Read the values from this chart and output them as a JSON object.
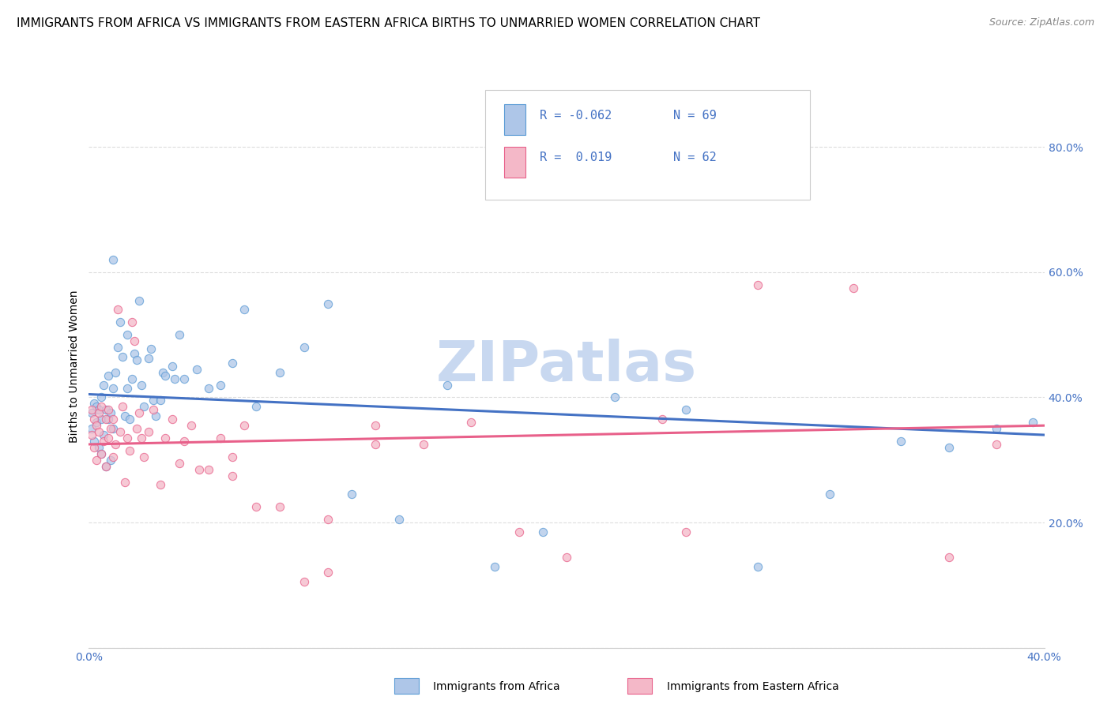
{
  "title": "IMMIGRANTS FROM AFRICA VS IMMIGRANTS FROM EASTERN AFRICA BIRTHS TO UNMARRIED WOMEN CORRELATION CHART",
  "source": "Source: ZipAtlas.com",
  "ylabel": "Births to Unmarried Women",
  "ytick_values": [
    0.0,
    0.2,
    0.4,
    0.6,
    0.8
  ],
  "ytick_labels": [
    "",
    "20.0%",
    "40.0%",
    "60.0%",
    "80.0%"
  ],
  "xlim": [
    0.0,
    0.4
  ],
  "ylim": [
    0.0,
    0.9
  ],
  "xtick_values": [
    0.0,
    0.4
  ],
  "xtick_labels": [
    "0.0%",
    "40.0%"
  ],
  "series1_label": "Immigrants from Africa",
  "series2_label": "Immigrants from Eastern Africa",
  "series1_color": "#aec6e8",
  "series1_edge_color": "#5b9bd5",
  "series2_color": "#f4b8c8",
  "series2_edge_color": "#e8608a",
  "line1_color": "#4472c4",
  "line2_color": "#e8608a",
  "legend_r1": "R = -0.062",
  "legend_n1": "N = 69",
  "legend_r2": "R =  0.019",
  "legend_n2": "N = 62",
  "watermark": "ZIPatlas",
  "watermark_color": "#c8d8f0",
  "background_color": "#ffffff",
  "grid_color": "#dddddd",
  "title_fontsize": 11,
  "ylabel_fontsize": 10,
  "tick_fontsize": 10,
  "legend_fontsize": 11,
  "scatter_size": 55,
  "scatter_alpha": 0.75,
  "series1_x": [
    0.001,
    0.001,
    0.002,
    0.002,
    0.003,
    0.003,
    0.004,
    0.004,
    0.005,
    0.005,
    0.005,
    0.006,
    0.006,
    0.007,
    0.007,
    0.008,
    0.008,
    0.009,
    0.009,
    0.01,
    0.01,
    0.011,
    0.012,
    0.013,
    0.014,
    0.015,
    0.016,
    0.016,
    0.017,
    0.018,
    0.019,
    0.02,
    0.021,
    0.022,
    0.023,
    0.025,
    0.026,
    0.027,
    0.028,
    0.03,
    0.031,
    0.032,
    0.035,
    0.036,
    0.038,
    0.04,
    0.045,
    0.05,
    0.055,
    0.06,
    0.065,
    0.07,
    0.08,
    0.09,
    0.1,
    0.11,
    0.13,
    0.15,
    0.17,
    0.19,
    0.22,
    0.25,
    0.28,
    0.31,
    0.34,
    0.36,
    0.38,
    0.395,
    0.01
  ],
  "series1_y": [
    0.375,
    0.35,
    0.39,
    0.33,
    0.385,
    0.36,
    0.38,
    0.32,
    0.4,
    0.365,
    0.31,
    0.42,
    0.34,
    0.38,
    0.29,
    0.365,
    0.435,
    0.3,
    0.375,
    0.415,
    0.35,
    0.44,
    0.48,
    0.52,
    0.465,
    0.37,
    0.5,
    0.415,
    0.365,
    0.43,
    0.47,
    0.46,
    0.555,
    0.42,
    0.385,
    0.462,
    0.478,
    0.395,
    0.37,
    0.395,
    0.44,
    0.435,
    0.45,
    0.43,
    0.5,
    0.43,
    0.445,
    0.415,
    0.42,
    0.455,
    0.54,
    0.385,
    0.44,
    0.48,
    0.55,
    0.245,
    0.205,
    0.42,
    0.13,
    0.185,
    0.4,
    0.38,
    0.13,
    0.245,
    0.33,
    0.32,
    0.35,
    0.36,
    0.62
  ],
  "series2_x": [
    0.001,
    0.001,
    0.002,
    0.002,
    0.003,
    0.003,
    0.004,
    0.004,
    0.005,
    0.005,
    0.006,
    0.007,
    0.007,
    0.008,
    0.008,
    0.009,
    0.01,
    0.01,
    0.011,
    0.012,
    0.013,
    0.014,
    0.015,
    0.016,
    0.017,
    0.018,
    0.019,
    0.02,
    0.021,
    0.022,
    0.023,
    0.025,
    0.027,
    0.03,
    0.032,
    0.035,
    0.038,
    0.04,
    0.043,
    0.046,
    0.05,
    0.055,
    0.06,
    0.065,
    0.07,
    0.08,
    0.09,
    0.1,
    0.12,
    0.14,
    0.16,
    0.2,
    0.24,
    0.28,
    0.32,
    0.36,
    0.38,
    0.12,
    0.25,
    0.1,
    0.18,
    0.06
  ],
  "series2_y": [
    0.38,
    0.34,
    0.365,
    0.32,
    0.355,
    0.3,
    0.375,
    0.345,
    0.385,
    0.31,
    0.33,
    0.365,
    0.29,
    0.335,
    0.38,
    0.35,
    0.305,
    0.365,
    0.325,
    0.54,
    0.345,
    0.385,
    0.265,
    0.335,
    0.315,
    0.52,
    0.49,
    0.35,
    0.375,
    0.335,
    0.305,
    0.345,
    0.38,
    0.26,
    0.335,
    0.365,
    0.295,
    0.33,
    0.355,
    0.285,
    0.285,
    0.335,
    0.305,
    0.355,
    0.225,
    0.225,
    0.105,
    0.12,
    0.325,
    0.325,
    0.36,
    0.145,
    0.365,
    0.58,
    0.575,
    0.145,
    0.325,
    0.355,
    0.185,
    0.205,
    0.185,
    0.275
  ],
  "line1_x": [
    0.0,
    0.4
  ],
  "line1_y": [
    0.405,
    0.34
  ],
  "line2_x": [
    0.0,
    0.4
  ],
  "line2_y": [
    0.325,
    0.355
  ]
}
